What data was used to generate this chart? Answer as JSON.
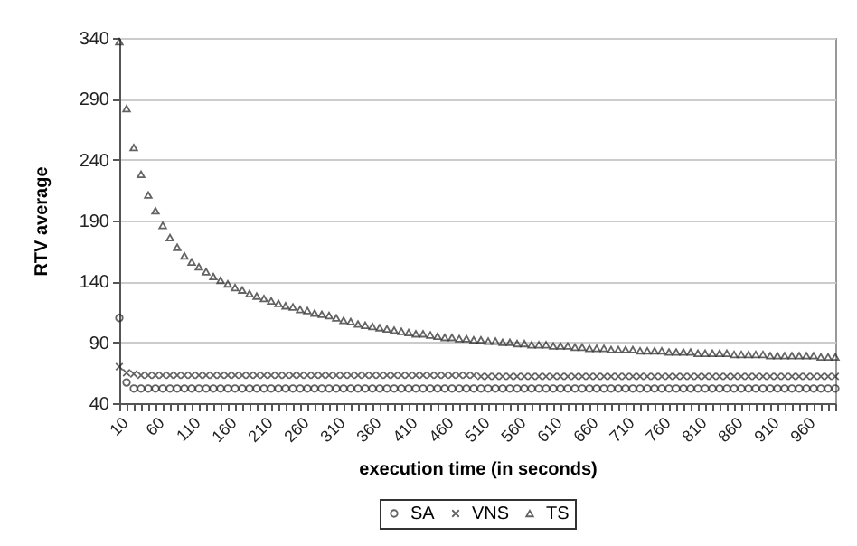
{
  "chart_data": {
    "type": "scatter",
    "xlabel": "execution time (in seconds)",
    "ylabel": "RTV average",
    "x": [
      10,
      20,
      30,
      40,
      50,
      60,
      70,
      80,
      90,
      100,
      110,
      120,
      130,
      140,
      150,
      160,
      170,
      180,
      190,
      200,
      210,
      220,
      230,
      240,
      250,
      260,
      270,
      280,
      290,
      300,
      310,
      320,
      330,
      340,
      350,
      360,
      370,
      380,
      390,
      400,
      410,
      420,
      430,
      440,
      450,
      460,
      470,
      480,
      490,
      500,
      510,
      520,
      530,
      540,
      550,
      560,
      570,
      580,
      590,
      600,
      610,
      620,
      630,
      640,
      650,
      660,
      670,
      680,
      690,
      700,
      710,
      720,
      730,
      740,
      750,
      760,
      770,
      780,
      790,
      800,
      810,
      820,
      830,
      840,
      850,
      860,
      870,
      880,
      890,
      900,
      910,
      920,
      930,
      940,
      950,
      960,
      970,
      980,
      990,
      1000
    ],
    "series": [
      {
        "name": "SA",
        "color": "#222222",
        "marker": "circle",
        "values": [
          110,
          57,
          52,
          52,
          52,
          52,
          52,
          52,
          52,
          52,
          52,
          52,
          52,
          52,
          52,
          52,
          52,
          52,
          52,
          52,
          52,
          52,
          52,
          52,
          52,
          52,
          52,
          52,
          52,
          52,
          52,
          52,
          52,
          52,
          52,
          52,
          52,
          52,
          52,
          52,
          52,
          52,
          52,
          52,
          52,
          52,
          52,
          52,
          52,
          52,
          52,
          52,
          52,
          52,
          52,
          52,
          52,
          52,
          52,
          52,
          52,
          52,
          52,
          52,
          52,
          52,
          52,
          52,
          52,
          52,
          52,
          52,
          52,
          52,
          52,
          52,
          52,
          52,
          52,
          52,
          52,
          52,
          52,
          52,
          52,
          52,
          52,
          52,
          52,
          52,
          52,
          52,
          52,
          52,
          52,
          52,
          52,
          52,
          52,
          52
        ]
      },
      {
        "name": "VNS",
        "color": "#222222",
        "marker": "cross",
        "values": [
          70,
          65,
          64,
          63,
          63,
          63,
          63,
          63,
          63,
          63,
          63,
          63,
          63,
          63,
          63,
          63,
          63,
          63,
          63,
          63,
          63,
          63,
          63,
          63,
          63,
          63,
          63,
          63,
          63,
          63,
          63,
          63,
          63,
          63,
          63,
          63,
          63,
          63,
          63,
          63,
          63,
          63,
          63,
          63,
          63,
          63,
          63,
          63,
          63,
          63,
          62,
          62,
          62,
          62,
          62,
          62,
          62,
          62,
          62,
          62,
          62,
          62,
          62,
          62,
          62,
          62,
          62,
          62,
          62,
          62,
          62,
          62,
          62,
          62,
          62,
          62,
          62,
          62,
          62,
          62,
          62,
          62,
          62,
          62,
          62,
          62,
          62,
          62,
          62,
          62,
          62,
          62,
          62,
          62,
          62,
          62,
          62,
          62,
          62,
          62
        ]
      },
      {
        "name": "TS",
        "color": "#222222",
        "marker": "triangle",
        "values": [
          337,
          282,
          250,
          228,
          211,
          198,
          186,
          176,
          168,
          161,
          156,
          152,
          148,
          144,
          141,
          138,
          135,
          133,
          130,
          128,
          126,
          124,
          122,
          120,
          119,
          117,
          116,
          114,
          113,
          112,
          110,
          108,
          107,
          105,
          104,
          103,
          102,
          101,
          100,
          99,
          98,
          97,
          97,
          96,
          95,
          94,
          94,
          93,
          93,
          92,
          92,
          91,
          91,
          90,
          90,
          89,
          89,
          88,
          88,
          88,
          87,
          87,
          87,
          86,
          86,
          85,
          85,
          85,
          84,
          84,
          84,
          84,
          83,
          83,
          83,
          83,
          82,
          82,
          82,
          82,
          81,
          81,
          81,
          81,
          81,
          80,
          80,
          80,
          80,
          80,
          79,
          79,
          79,
          79,
          79,
          79,
          79,
          78,
          78,
          78
        ]
      }
    ],
    "xlim": [
      10,
      1000
    ],
    "xticks": [
      10,
      {
        "value": 20,
        "label": null
      },
      {
        "value": 30,
        "label": null
      },
      {
        "value": 40,
        "label": null
      },
      {
        "value": 50,
        "label": null
      },
      60,
      {
        "value": 70,
        "label": null
      },
      {
        "value": 80,
        "label": null
      },
      {
        "value": 90,
        "label": null
      },
      {
        "value": 100,
        "label": null
      },
      110,
      {
        "value": 120,
        "label": null
      },
      {
        "value": 130,
        "label": null
      },
      {
        "value": 140,
        "label": null
      },
      {
        "value": 150,
        "label": null
      },
      160,
      {
        "value": 170,
        "label": null
      },
      {
        "value": 180,
        "label": null
      },
      {
        "value": 190,
        "label": null
      },
      {
        "value": 200,
        "label": null
      },
      210,
      {
        "value": 220,
        "label": null
      },
      {
        "value": 230,
        "label": null
      },
      {
        "value": 240,
        "label": null
      },
      {
        "value": 250,
        "label": null
      },
      260,
      {
        "value": 270,
        "label": null
      },
      {
        "value": 280,
        "label": null
      },
      {
        "value": 290,
        "label": null
      },
      {
        "value": 300,
        "label": null
      },
      310,
      {
        "value": 320,
        "label": null
      },
      {
        "value": 330,
        "label": null
      },
      {
        "value": 340,
        "label": null
      },
      {
        "value": 350,
        "label": null
      },
      360,
      {
        "value": 370,
        "label": null
      },
      {
        "value": 380,
        "label": null
      },
      {
        "value": 390,
        "label": null
      },
      {
        "value": 400,
        "label": null
      },
      410,
      {
        "value": 420,
        "label": null
      },
      {
        "value": 430,
        "label": null
      },
      {
        "value": 440,
        "label": null
      },
      {
        "value": 450,
        "label": null
      },
      460,
      {
        "value": 470,
        "label": null
      },
      {
        "value": 480,
        "label": null
      },
      {
        "value": 490,
        "label": null
      },
      {
        "value": 500,
        "label": null
      },
      510,
      {
        "value": 520,
        "label": null
      },
      {
        "value": 530,
        "label": null
      },
      {
        "value": 540,
        "label": null
      },
      {
        "value": 550,
        "label": null
      },
      560,
      {
        "value": 570,
        "label": null
      },
      {
        "value": 580,
        "label": null
      },
      {
        "value": 590,
        "label": null
      },
      {
        "value": 600,
        "label": null
      },
      610,
      {
        "value": 620,
        "label": null
      },
      {
        "value": 630,
        "label": null
      },
      {
        "value": 640,
        "label": null
      },
      {
        "value": 650,
        "label": null
      },
      660,
      {
        "value": 670,
        "label": null
      },
      {
        "value": 680,
        "label": null
      },
      {
        "value": 690,
        "label": null
      },
      {
        "value": 700,
        "label": null
      },
      710,
      {
        "value": 720,
        "label": null
      },
      {
        "value": 730,
        "label": null
      },
      {
        "value": 740,
        "label": null
      },
      {
        "value": 750,
        "label": null
      },
      760,
      {
        "value": 770,
        "label": null
      },
      {
        "value": 780,
        "label": null
      },
      {
        "value": 790,
        "label": null
      },
      {
        "value": 800,
        "label": null
      },
      810,
      {
        "value": 820,
        "label": null
      },
      {
        "value": 830,
        "label": null
      },
      {
        "value": 840,
        "label": null
      },
      {
        "value": 850,
        "label": null
      },
      860,
      {
        "value": 870,
        "label": null
      },
      {
        "value": 880,
        "label": null
      },
      {
        "value": 890,
        "label": null
      },
      {
        "value": 900,
        "label": null
      },
      910,
      {
        "value": 920,
        "label": null
      },
      {
        "value": 930,
        "label": null
      },
      {
        "value": 940,
        "label": null
      },
      {
        "value": 950,
        "label": null
      },
      960,
      {
        "value": 970,
        "label": null
      },
      {
        "value": 980,
        "label": null
      },
      {
        "value": 990,
        "label": null
      },
      {
        "value": 1000,
        "label": null
      }
    ],
    "ylim": [
      40,
      340
    ],
    "yticks": [
      40,
      90,
      140,
      190,
      240,
      290,
      340
    ],
    "grid": "y",
    "legend": "bottom"
  }
}
